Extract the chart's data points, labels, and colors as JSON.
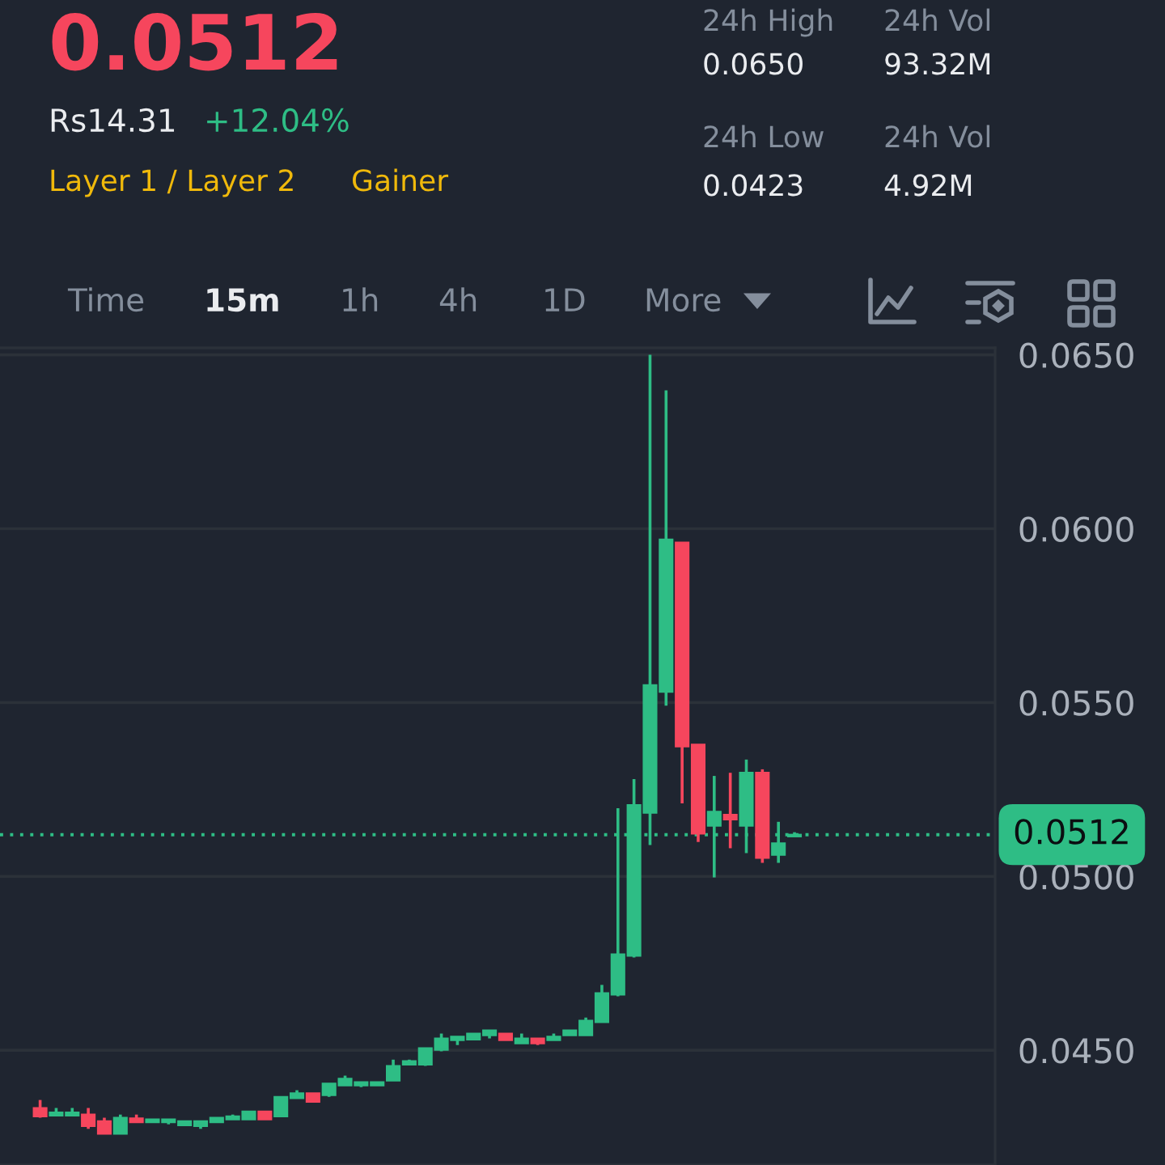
{
  "chart_data": {
    "type": "candlestick",
    "title": "0.0512",
    "annotations": [
      "Rs14.31",
      "+12.04%",
      "Layer 1 / Layer 2",
      "Gainer",
      "24h High",
      "0.0650",
      "24h Vol",
      "93.32M",
      "24h Low",
      "0.0423",
      "24h Vol",
      "4.92M",
      "Time",
      "15m",
      "1h",
      "4h",
      "1D",
      "More"
    ],
    "categories": [
      null,
      null,
      null,
      null,
      null,
      null,
      null,
      null,
      null,
      null,
      null,
      null,
      null,
      null,
      null,
      null,
      null,
      null,
      null,
      null,
      null,
      null,
      null,
      null,
      null,
      null,
      null,
      null,
      null,
      null,
      null,
      null,
      null,
      null,
      null,
      null,
      null,
      null,
      null,
      null,
      null,
      null,
      null,
      null,
      null,
      null,
      null,
      null,
      null,
      null,
      null,
      null,
      null,
      null,
      null,
      null,
      null,
      null,
      null,
      null,
      null,
      null
    ],
    "ohlc": [
      null,
      null,
      [
        0.04334,
        0.04357,
        0.04306,
        0.0431
      ],
      [
        0.04312,
        0.04334,
        0.04312,
        0.04321
      ],
      [
        0.04312,
        0.04334,
        0.04312,
        0.04321
      ],
      [
        0.04315,
        0.04334,
        0.04274,
        0.04282
      ],
      [
        0.04296,
        0.04306,
        0.0426,
        0.0426
      ],
      [
        0.0426,
        0.04315,
        0.0426,
        0.04306
      ],
      [
        0.04304,
        0.04315,
        0.04293,
        0.04293
      ],
      [
        0.04293,
        0.04301,
        0.04293,
        0.04301
      ],
      [
        0.04293,
        0.04301,
        0.04287,
        0.04301
      ],
      [
        0.04284,
        0.04296,
        0.04284,
        0.04296
      ],
      [
        0.04282,
        0.04296,
        0.04274,
        0.04296
      ],
      [
        0.04293,
        0.04306,
        0.04293,
        0.04306
      ],
      [
        0.04301,
        0.04315,
        0.04301,
        0.0431
      ],
      [
        0.04301,
        0.04324,
        0.04301,
        0.04324
      ],
      [
        0.04324,
        0.04324,
        0.04301,
        0.04301
      ],
      [
        0.0431,
        0.04366,
        0.0431,
        0.04366
      ],
      [
        0.04362,
        0.04385,
        0.04362,
        0.04376
      ],
      [
        0.04376,
        0.04376,
        0.04352,
        0.04352
      ],
      [
        0.04371,
        0.04404,
        0.04366,
        0.04404
      ],
      [
        0.04399,
        0.04427,
        0.04399,
        0.04418
      ],
      [
        0.04399,
        0.04408,
        0.04394,
        0.04408
      ],
      [
        0.04399,
        0.04408,
        0.04399,
        0.04408
      ],
      [
        0.04413,
        0.04473,
        0.04413,
        0.04455
      ],
      [
        0.04459,
        0.04473,
        0.04459,
        0.04469
      ],
      [
        0.04459,
        0.04506,
        0.04455,
        0.04506
      ],
      [
        0.04501,
        0.04548,
        0.04497,
        0.04534
      ],
      [
        0.04529,
        0.04539,
        0.04515,
        0.04539
      ],
      [
        0.04531,
        0.04548,
        0.04531,
        0.04548
      ],
      [
        0.04543,
        0.04557,
        0.04534,
        0.04557
      ],
      [
        0.04548,
        0.04548,
        0.04529,
        0.04529
      ],
      [
        0.0452,
        0.04548,
        0.0452,
        0.04534
      ],
      [
        0.04534,
        0.04534,
        0.04515,
        0.0452
      ],
      [
        0.04529,
        0.04548,
        0.04529,
        0.04539
      ],
      [
        0.04543,
        0.04557,
        0.04543,
        0.04557
      ],
      [
        0.04543,
        0.04594,
        0.04543,
        0.04585
      ],
      [
        0.04581,
        0.04688,
        0.04581,
        0.04664
      ],
      [
        0.0466,
        0.05196,
        0.04655,
        0.04776
      ],
      [
        0.04772,
        0.0528,
        0.04767,
        0.05205
      ],
      [
        0.05183,
        0.065,
        0.0509,
        0.0555
      ],
      [
        0.05531,
        0.06398,
        0.05491,
        0.05969
      ],
      [
        0.0596,
        0.0596,
        0.0521,
        0.05374
      ],
      [
        0.05379,
        0.05379,
        0.05099,
        0.05123
      ],
      [
        0.05146,
        0.05289,
        0.04997,
        0.05186
      ],
      [
        0.05177,
        0.05298,
        0.05081,
        0.05164
      ],
      [
        0.05146,
        0.05336,
        0.05067,
        0.05298
      ],
      [
        0.05298,
        0.05308,
        0.05039,
        0.05053
      ],
      [
        0.05062,
        0.05157,
        0.05039,
        0.05095
      ],
      [
        0.05115,
        0.05127,
        0.05115,
        0.0512
      ],
      null,
      null,
      null,
      null,
      null,
      null,
      null,
      null,
      null,
      null,
      null,
      null
    ],
    "colors": [
      null,
      null,
      "#f6465d",
      "#2ebd85",
      "#2ebd85",
      "#f6465d",
      "#f6465d",
      "#2ebd85",
      "#f6465d",
      "#2ebd85",
      "#2ebd85",
      "#2ebd85",
      "#2ebd85",
      "#2ebd85",
      "#2ebd85",
      "#2ebd85",
      "#f6465d",
      "#2ebd85",
      "#2ebd85",
      "#f6465d",
      "#2ebd85",
      "#2ebd85",
      "#2ebd85",
      "#2ebd85",
      "#2ebd85",
      "#2ebd85",
      "#2ebd85",
      "#2ebd85",
      "#2ebd85",
      "#2ebd85",
      "#2ebd85",
      "#f6465d",
      "#2ebd85",
      "#f6465d",
      "#2ebd85",
      "#2ebd85",
      "#2ebd85",
      "#2ebd85",
      "#2ebd85",
      "#2ebd85",
      "#2ebd85",
      "#2ebd85",
      "#f6465d",
      "#f6465d",
      "#2ebd85",
      "#f6465d",
      "#2ebd85",
      "#f6465d",
      "#2ebd85",
      "#2ebd85",
      null,
      null,
      null,
      null,
      null,
      null,
      null,
      null,
      null,
      null,
      null,
      null
    ],
    "ylim": [
      0.0417,
      0.0652
    ],
    "yticks": [
      {
        "value": 0.045,
        "label": "0.0450"
      },
      {
        "value": 0.05,
        "label": "0.0500"
      },
      {
        "value": 0.055,
        "label": "0.0550"
      },
      {
        "value": 0.06,
        "label": "0.0600"
      },
      {
        "value": 0.065,
        "label": "0.0650"
      }
    ],
    "grid": "y",
    "tick_labels": "y",
    "ref_lines": [
      {
        "axis": "y",
        "value": 0.0512,
        "label": "0.0512",
        "color": "#2ebd85",
        "line_style": "dotted"
      }
    ]
  }
}
